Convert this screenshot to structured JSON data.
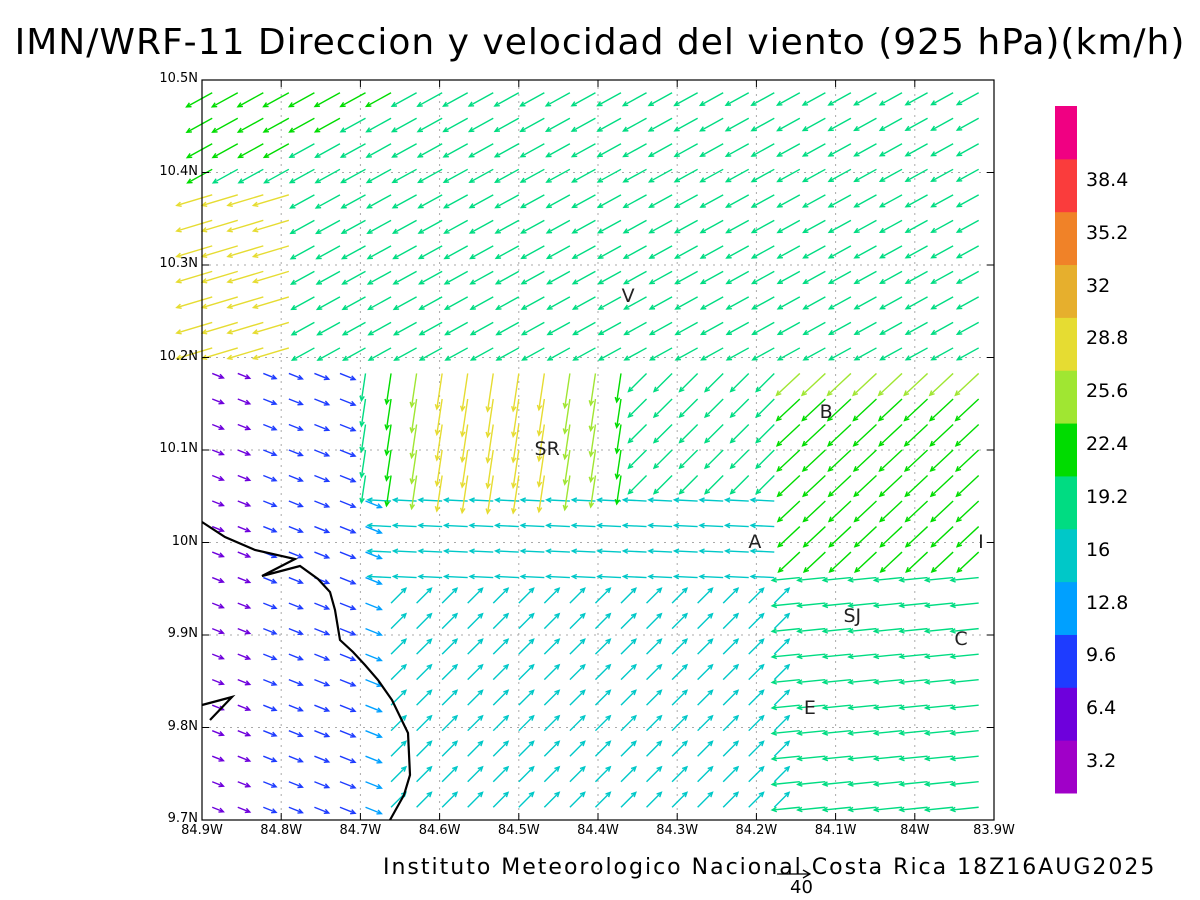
{
  "title": "IMN/WRF-11 Direccion y velocidad del viento (925 hPa)(km/h)",
  "footer": "Instituto Meteorologico Nacional Costa Rica 18Z16AUG2025",
  "reference_vector_label": "40",
  "axes": {
    "x_ticks": [
      "84.9W",
      "84.8W",
      "84.7W",
      "84.6W",
      "84.5W",
      "84.4W",
      "84.3W",
      "84.2W",
      "84.1W",
      "84W",
      "83.9W"
    ],
    "y_ticks": [
      "10.5N",
      "10.4N",
      "10.3N",
      "10.2N",
      "10.1N",
      "10N",
      "9.9N",
      "9.8N",
      "9.7N"
    ],
    "x_range": [
      -84.9,
      -83.9
    ],
    "y_range": [
      9.7,
      10.5
    ],
    "grid": true
  },
  "colorbar": {
    "labels": [
      "3.2",
      "6.4",
      "9.6",
      "12.8",
      "16",
      "19.2",
      "22.4",
      "25.6",
      "28.8",
      "32",
      "35.2",
      "38.4"
    ],
    "colors": [
      "#a000c8",
      "#6e00dc",
      "#1e3cff",
      "#00a0ff",
      "#00c8c8",
      "#00dc82",
      "#00dc00",
      "#a0e632",
      "#e6dc32",
      "#e6af2d",
      "#f08228",
      "#fa3c3c",
      "#f00082"
    ]
  },
  "places": [
    {
      "name": "V",
      "lon": -84.36,
      "lat": 10.265
    },
    {
      "name": "B",
      "lon": -84.11,
      "lat": 10.14
    },
    {
      "name": "SR",
      "lon": -84.47,
      "lat": 10.1
    },
    {
      "name": "A",
      "lon": -84.2,
      "lat": 10.0
    },
    {
      "name": "I",
      "lon": -83.91,
      "lat": 10.0
    },
    {
      "name": "SJ",
      "lon": -84.08,
      "lat": 9.92
    },
    {
      "name": "C",
      "lon": -83.94,
      "lat": 9.895
    },
    {
      "name": "E",
      "lon": -84.13,
      "lat": 9.82
    }
  ]
}
